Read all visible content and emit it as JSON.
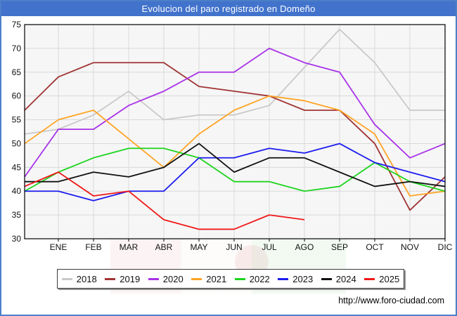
{
  "title": "Evolucion del paro registrado en Domeño",
  "footer": {
    "url": "http://www.foro-ciudad.com"
  },
  "chart_data": {
    "type": "line",
    "title": "Evolucion del paro registrado en Domeño",
    "x_labels": [
      "ENE",
      "FEB",
      "MAR",
      "ABR",
      "MAY",
      "JUN",
      "JUL",
      "AGO",
      "SEP",
      "OCT",
      "NOV",
      "DIC"
    ],
    "ylim": [
      30,
      75
    ],
    "ytick_step": 5,
    "grid": true,
    "legend_position": "bottom",
    "plot_bg": "#f6f6f6",
    "grid_color": "#d9d9d9",
    "note": "Each line starts at the left axis with the previous December value",
    "series": [
      {
        "name": "2018",
        "color": "#c9c9c9",
        "start": 52,
        "values": [
          53,
          56,
          61,
          55,
          56,
          56,
          58,
          66,
          74,
          67,
          57,
          57
        ]
      },
      {
        "name": "2019",
        "color": "#a03434",
        "start": 57,
        "values": [
          64,
          67,
          67,
          67,
          62,
          61,
          60,
          57,
          57,
          50,
          36,
          43
        ]
      },
      {
        "name": "2020",
        "color": "#a832e8",
        "start": 43,
        "values": [
          53,
          53,
          58,
          61,
          65,
          65,
          70,
          67,
          65,
          54,
          47,
          50
        ]
      },
      {
        "name": "2021",
        "color": "#ffa424",
        "start": 50,
        "values": [
          55,
          57,
          51,
          45,
          52,
          57,
          60,
          59,
          57,
          52,
          39,
          40
        ]
      },
      {
        "name": "2022",
        "color": "#1ed41e",
        "start": 40,
        "values": [
          44,
          47,
          49,
          49,
          47,
          42,
          42,
          40,
          41,
          46,
          42,
          40
        ]
      },
      {
        "name": "2023",
        "color": "#1c1cf0",
        "start": 40,
        "values": [
          40,
          38,
          40,
          40,
          47,
          47,
          49,
          48,
          50,
          46,
          44,
          42
        ]
      },
      {
        "name": "2024",
        "color": "#111111",
        "start": 42,
        "values": [
          42,
          44,
          43,
          45,
          50,
          44,
          47,
          47,
          44,
          41,
          42,
          41
        ]
      },
      {
        "name": "2025",
        "color": "#f01818",
        "start": 41,
        "values": [
          44,
          39,
          40,
          34,
          32,
          32,
          35,
          34
        ]
      }
    ]
  }
}
